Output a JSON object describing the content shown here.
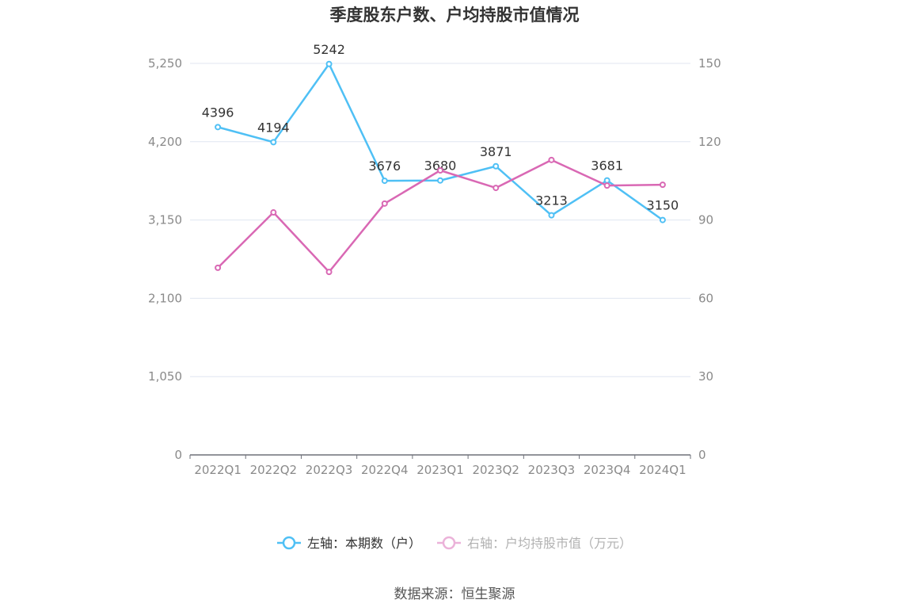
{
  "chart_data": {
    "type": "line",
    "title": "季度股东户数、户均持股市值情况",
    "categories": [
      "2022Q1",
      "2022Q2",
      "2022Q3",
      "2022Q4",
      "2023Q1",
      "2023Q2",
      "2023Q3",
      "2023Q4",
      "2024Q1"
    ],
    "left_axis": {
      "ticks": [
        "0",
        "1,050",
        "2,100",
        "3,150",
        "4,200",
        "5,250"
      ],
      "range": [
        0,
        5250
      ]
    },
    "right_axis": {
      "ticks": [
        "0",
        "30",
        "60",
        "90",
        "120",
        "150"
      ],
      "range": [
        0,
        150
      ]
    },
    "series": [
      {
        "name": "左轴：本期数（户）",
        "axis": "left",
        "color": "#4fc0f5",
        "values": [
          4396,
          4194,
          5242,
          3676,
          3680,
          3871,
          3213,
          3681,
          3150
        ],
        "labels": [
          "4396",
          "4194",
          "5242",
          "3676",
          "3680",
          "3871",
          "3213",
          "3681",
          "3150"
        ]
      },
      {
        "name": "右轴：户均持股市值（万元）",
        "axis": "right",
        "color": "#d968b4",
        "values": [
          71.7,
          92.9,
          70.1,
          96.3,
          109.0,
          102.3,
          113.0,
          103.2,
          103.5
        ]
      }
    ],
    "grid": true,
    "legend": "bottom"
  },
  "source": "数据来源：恒生聚源"
}
